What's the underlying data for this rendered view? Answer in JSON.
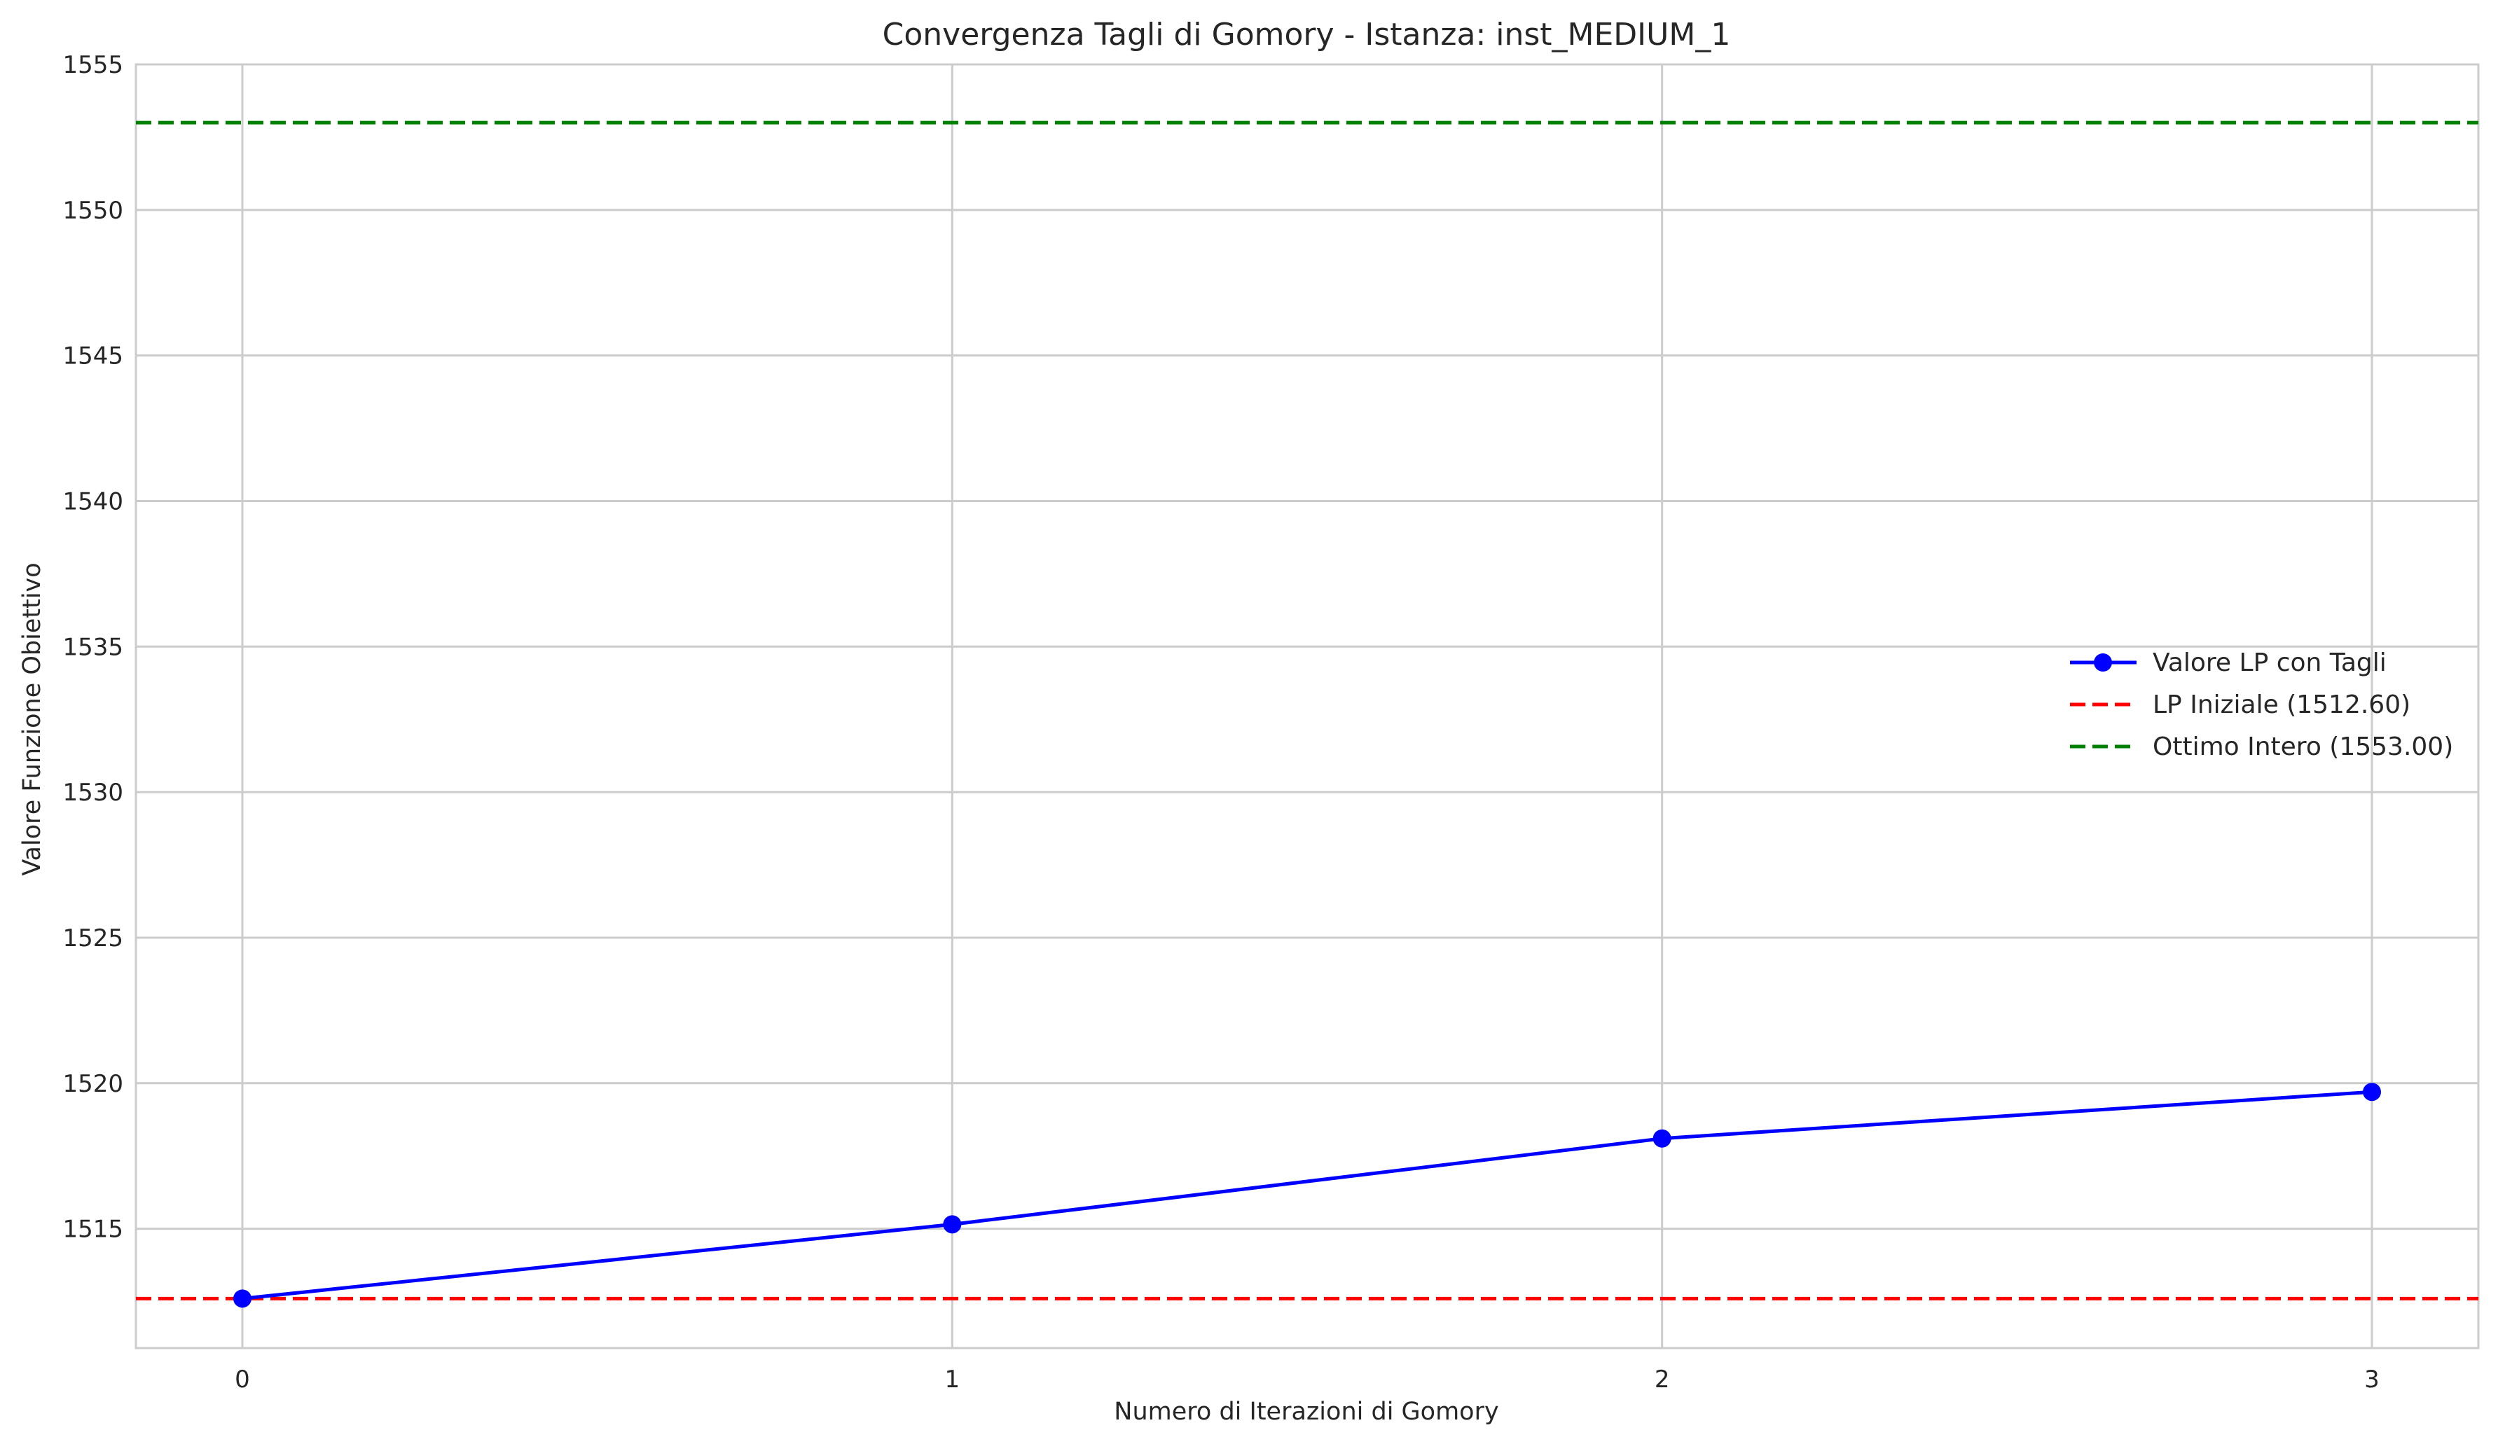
{
  "chart_data": {
    "type": "line",
    "title": "Convergenza Tagli di Gomory - Istanza: inst_MEDIUM_1",
    "xlabel": "Numero di Iterazioni di Gomory",
    "ylabel": "Valore Funzione Obiettivo",
    "x": [
      0,
      1,
      2,
      3
    ],
    "xticks": [
      "0",
      "1",
      "2",
      "3"
    ],
    "xlim": [
      -0.15,
      3.15
    ],
    "ylim": [
      1510.9,
      1555
    ],
    "yticks": [
      1515,
      1520,
      1525,
      1530,
      1535,
      1540,
      1545,
      1550,
      1555
    ],
    "grid": true,
    "legend_position": "center-right",
    "series": [
      {
        "name": "Valore LP con Tagli",
        "kind": "line-marker",
        "color": "#0000ff",
        "values": [
          1512.6,
          1515.15,
          1518.1,
          1519.7
        ]
      }
    ],
    "reference_lines": [
      {
        "name": "LP Iniziale (1512.60)",
        "value": 1512.6,
        "color": "#ff0000",
        "style": "dashed"
      },
      {
        "name": "Ottimo Intero (1553.00)",
        "value": 1553.0,
        "color": "#008000",
        "style": "dashed"
      }
    ]
  }
}
